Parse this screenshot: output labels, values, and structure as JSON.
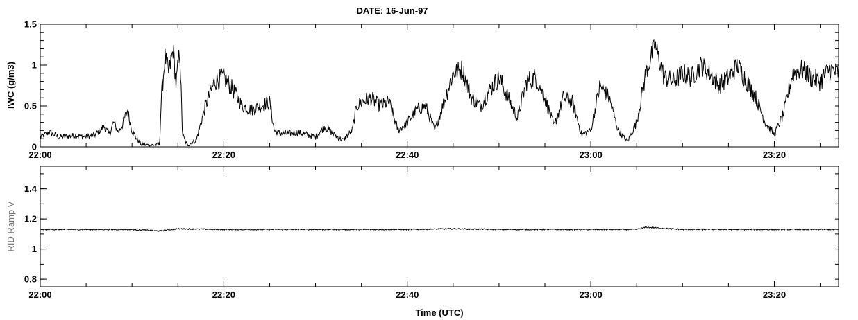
{
  "header": {
    "date_label": "DATE: 16-Jun-97"
  },
  "xlabel": "Time (UTC)",
  "x_ticks": [
    "22:00",
    "22:20",
    "22:40",
    "23:00",
    "23:20"
  ],
  "colors": {
    "trace": "#000000",
    "axes": "#000000",
    "ylabel_bottom": "#777777"
  },
  "chart_data": [
    {
      "type": "line",
      "ylabel": "IWC (g/m3)",
      "x_unit": "minutes after 22:00 UTC",
      "xlim": [
        0,
        87
      ],
      "ylim": [
        0,
        1.5
      ],
      "y_ticks": [
        "0",
        "0.5",
        "1",
        "1.5"
      ],
      "y_tick_values": [
        0,
        0.5,
        1,
        1.5
      ],
      "grid": false,
      "series": [
        {
          "x": [
            0,
            1,
            2,
            3,
            4,
            5,
            6,
            7,
            7.5,
            8,
            8.5,
            9,
            9.5,
            10,
            10.5,
            11,
            12,
            13,
            13.2,
            13.6,
            14,
            14.5,
            14.8,
            15.2,
            15.5,
            16,
            17,
            18,
            19,
            20,
            21,
            22,
            23,
            24,
            25,
            25.5,
            26,
            27,
            28,
            29,
            30,
            31,
            32,
            33,
            34,
            34.5,
            35,
            36,
            37,
            38,
            39,
            40,
            41,
            42,
            43,
            44,
            45,
            46,
            47,
            48,
            49,
            50,
            51,
            52,
            53,
            54,
            55,
            56,
            57,
            58,
            59,
            60,
            61,
            62,
            63,
            64,
            65,
            66,
            67,
            68,
            69,
            70,
            71,
            72,
            73,
            74,
            75,
            76,
            77,
            78,
            79,
            80,
            81,
            82,
            83,
            84,
            85,
            86,
            87
          ],
          "values": [
            0.12,
            0.18,
            0.12,
            0.13,
            0.14,
            0.12,
            0.15,
            0.25,
            0.15,
            0.3,
            0.18,
            0.28,
            0.45,
            0.2,
            0.1,
            0.03,
            0.02,
            0.03,
            0.6,
            1.1,
            0.9,
            1.2,
            0.75,
            1.2,
            0.15,
            0.02,
            0.08,
            0.5,
            0.8,
            0.85,
            0.7,
            0.5,
            0.45,
            0.5,
            0.55,
            0.2,
            0.17,
            0.16,
            0.18,
            0.15,
            0.12,
            0.25,
            0.15,
            0.08,
            0.2,
            0.5,
            0.55,
            0.6,
            0.5,
            0.55,
            0.2,
            0.3,
            0.45,
            0.5,
            0.2,
            0.55,
            0.9,
            0.95,
            0.6,
            0.5,
            0.7,
            0.85,
            0.6,
            0.35,
            0.8,
            0.85,
            0.6,
            0.25,
            0.6,
            0.55,
            0.15,
            0.2,
            0.75,
            0.6,
            0.2,
            0.06,
            0.3,
            0.9,
            1.25,
            0.85,
            0.8,
            0.9,
            0.85,
            1.0,
            0.9,
            0.75,
            0.85,
            1.0,
            0.8,
            0.6,
            0.3,
            0.15,
            0.4,
            0.9,
            0.95,
            0.85,
            0.8,
            0.95,
            0.9
          ]
        }
      ]
    },
    {
      "type": "line",
      "ylabel": "RID Ramp V",
      "x_unit": "minutes after 22:00 UTC",
      "xlim": [
        0,
        87
      ],
      "ylim": [
        0.75,
        1.55
      ],
      "y_ticks": [
        "0.8",
        "1",
        "1.2",
        "1.4"
      ],
      "y_tick_values": [
        0.8,
        1.0,
        1.2,
        1.4
      ],
      "grid": false,
      "series": [
        {
          "x": [
            0,
            5,
            10,
            13,
            15,
            20,
            25,
            30,
            35,
            40,
            45,
            50,
            55,
            60,
            65,
            66,
            70,
            75,
            80,
            85,
            87
          ],
          "values": [
            1.13,
            1.13,
            1.13,
            1.12,
            1.135,
            1.13,
            1.13,
            1.13,
            1.13,
            1.13,
            1.135,
            1.13,
            1.13,
            1.13,
            1.13,
            1.145,
            1.13,
            1.13,
            1.13,
            1.13,
            1.13
          ]
        }
      ]
    }
  ]
}
